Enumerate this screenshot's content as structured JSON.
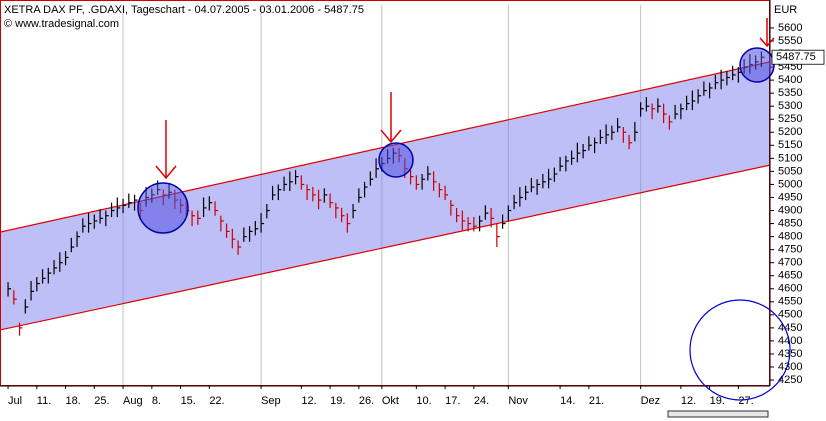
{
  "chart_data": {
    "type": "ohlc",
    "title": "XETRA DAX PF, .GDAXI, Tageschart - 04.07.2005 - 03.01.2006 - 5487.75",
    "source": "© www.tradesignal.com",
    "y_unit": "EUR",
    "last": 5487.75,
    "ylim": [
      4231,
      5688
    ],
    "xlim": [
      -1.4,
      132.5
    ],
    "yticks": [
      5600,
      5550,
      5500,
      5450,
      5400,
      5350,
      5300,
      5250,
      5200,
      5150,
      5100,
      5050,
      5000,
      4950,
      4900,
      4850,
      4800,
      4750,
      4700,
      4650,
      4600,
      4550,
      4500,
      4450,
      4400,
      4350,
      4300,
      4250
    ],
    "xticks": [
      {
        "value": 0,
        "label": "Jul"
      },
      {
        "value": 5,
        "label": "11."
      },
      {
        "value": 10,
        "label": "18."
      },
      {
        "value": 15,
        "label": "25."
      },
      {
        "value": 20,
        "label": "Aug"
      },
      {
        "value": 25,
        "label": "8."
      },
      {
        "value": 30,
        "label": "15."
      },
      {
        "value": 35,
        "label": "22."
      },
      {
        "value": 44,
        "label": "Sep"
      },
      {
        "value": 51,
        "label": "12."
      },
      {
        "value": 56,
        "label": "19."
      },
      {
        "value": 61,
        "label": "26."
      },
      {
        "value": 65,
        "label": "Okt"
      },
      {
        "value": 71,
        "label": "10."
      },
      {
        "value": 76,
        "label": "17."
      },
      {
        "value": 81,
        "label": "24."
      },
      {
        "value": 87,
        "label": "Nov"
      },
      {
        "value": 96,
        "label": "14."
      },
      {
        "value": 101,
        "label": "21."
      },
      {
        "value": 110,
        "label": "Dez"
      },
      {
        "value": 117,
        "label": "12."
      },
      {
        "value": 122,
        "label": "19."
      },
      {
        "value": 127,
        "label": "27."
      }
    ],
    "month_grid": [
      20,
      44,
      65,
      87,
      110
    ],
    "bar_color_up": "#000000",
    "bar_color_down": "#cc0000",
    "channel": {
      "color": "#dd0000",
      "fill": "#8080f0",
      "x": [
        -1.4,
        132.5
      ],
      "upper": [
        4817,
        5470
      ],
      "lower": [
        4442,
        5074
      ]
    },
    "series": {
      "high": [
        4625,
        4595,
        4470,
        4560,
        4630,
        4645,
        4675,
        4680,
        4710,
        4740,
        4745,
        4795,
        4820,
        4870,
        4890,
        4885,
        4905,
        4900,
        4930,
        4950,
        4945,
        4965,
        4960,
        4930,
        4990,
        4985,
        5015,
        4980,
        5000,
        4980,
        4945,
        4935,
        4900,
        4900,
        4950,
        4955,
        4935,
        4880,
        4850,
        4830,
        4785,
        4835,
        4840,
        4860,
        4890,
        4925,
        4995,
        5000,
        5030,
        5050,
        5055,
        5035,
        5000,
        4990,
        4980,
        4985,
        4965,
        4930,
        4910,
        4890,
        4925,
        4985,
        5010,
        5050,
        5100,
        5105,
        5135,
        5140,
        5140,
        5100,
        5055,
        5035,
        5040,
        5070,
        5050,
        5005,
        4995,
        4940,
        4910,
        4900,
        4875,
        4875,
        4880,
        4920,
        4910,
        4850,
        4885,
        4920,
        4960,
        4990,
        4995,
        5025,
        5020,
        5040,
        5060,
        5065,
        5105,
        5110,
        5130,
        5160,
        5155,
        5185,
        5180,
        5210,
        5230,
        5225,
        5255,
        5220,
        5190,
        5240,
        5315,
        5335,
        5310,
        5330,
        5310,
        5265,
        5305,
        5310,
        5340,
        5360,
        5365,
        5395,
        5390,
        5420,
        5440,
        5435,
        5455,
        5450,
        5480,
        5500,
        5495,
        5510
      ],
      "low": [
        4570,
        4540,
        4420,
        4505,
        4555,
        4590,
        4620,
        4620,
        4655,
        4665,
        4690,
        4740,
        4760,
        4815,
        4815,
        4830,
        4850,
        4840,
        4875,
        4875,
        4890,
        4910,
        4900,
        4875,
        4915,
        4930,
        4960,
        4920,
        4945,
        4905,
        4890,
        4880,
        4840,
        4845,
        4875,
        4900,
        4880,
        4820,
        4795,
        4755,
        4730,
        4780,
        4780,
        4805,
        4815,
        4870,
        4940,
        4940,
        4975,
        4975,
        5000,
        4980,
        4940,
        4935,
        4905,
        4930,
        4910,
        4870,
        4855,
        4815,
        4870,
        4930,
        4950,
        4995,
        5025,
        5050,
        5080,
        5080,
        5085,
        5025,
        5000,
        4980,
        4980,
        5015,
        4975,
        4950,
        4940,
        4880,
        4855,
        4825,
        4820,
        4820,
        4820,
        4865,
        4835,
        4760,
        4830,
        4860,
        4905,
        4915,
        4940,
        4970,
        4960,
        4985,
        4985,
        5010,
        5050,
        5050,
        5075,
        5085,
        5100,
        5130,
        5120,
        5155,
        5155,
        5170,
        5200,
        5160,
        5135,
        5165,
        5260,
        5280,
        5250,
        5275,
        5235,
        5210,
        5250,
        5250,
        5285,
        5285,
        5310,
        5340,
        5330,
        5365,
        5365,
        5380,
        5400,
        5390,
        5425,
        5425,
        5440,
        5450
      ],
      "close": [
        4600,
        4560,
        4450,
        4530,
        4590,
        4620,
        4640,
        4660,
        4680,
        4700,
        4720,
        4760,
        4800,
        4840,
        4850,
        4860,
        4870,
        4880,
        4900,
        4910,
        4920,
        4930,
        4940,
        4900,
        4950,
        4960,
        4980,
        4960,
        4970,
        4940,
        4920,
        4900,
        4880,
        4870,
        4910,
        4930,
        4900,
        4860,
        4820,
        4790,
        4760,
        4800,
        4820,
        4830,
        4850,
        4900,
        4960,
        4980,
        5000,
        5010,
        5030,
        5000,
        4980,
        4960,
        4940,
        4960,
        4930,
        4910,
        4880,
        4850,
        4900,
        4950,
        4990,
        5020,
        5060,
        5080,
        5100,
        5120,
        5110,
        5060,
        5030,
        5000,
        5020,
        5040,
        5010,
        4980,
        4960,
        4920,
        4880,
        4860,
        4850,
        4840,
        4860,
        4890,
        4870,
        4800,
        4850,
        4900,
        4930,
        4950,
        4970,
        4990,
        5000,
        5010,
        5020,
        5040,
        5070,
        5090,
        5100,
        5120,
        5130,
        5150,
        5160,
        5180,
        5190,
        5200,
        5220,
        5200,
        5160,
        5200,
        5290,
        5300,
        5290,
        5300,
        5270,
        5240,
        5270,
        5290,
        5310,
        5320,
        5340,
        5360,
        5370,
        5390,
        5400,
        5410,
        5420,
        5430,
        5450,
        5460,
        5470,
        5487.75
      ]
    }
  }
}
